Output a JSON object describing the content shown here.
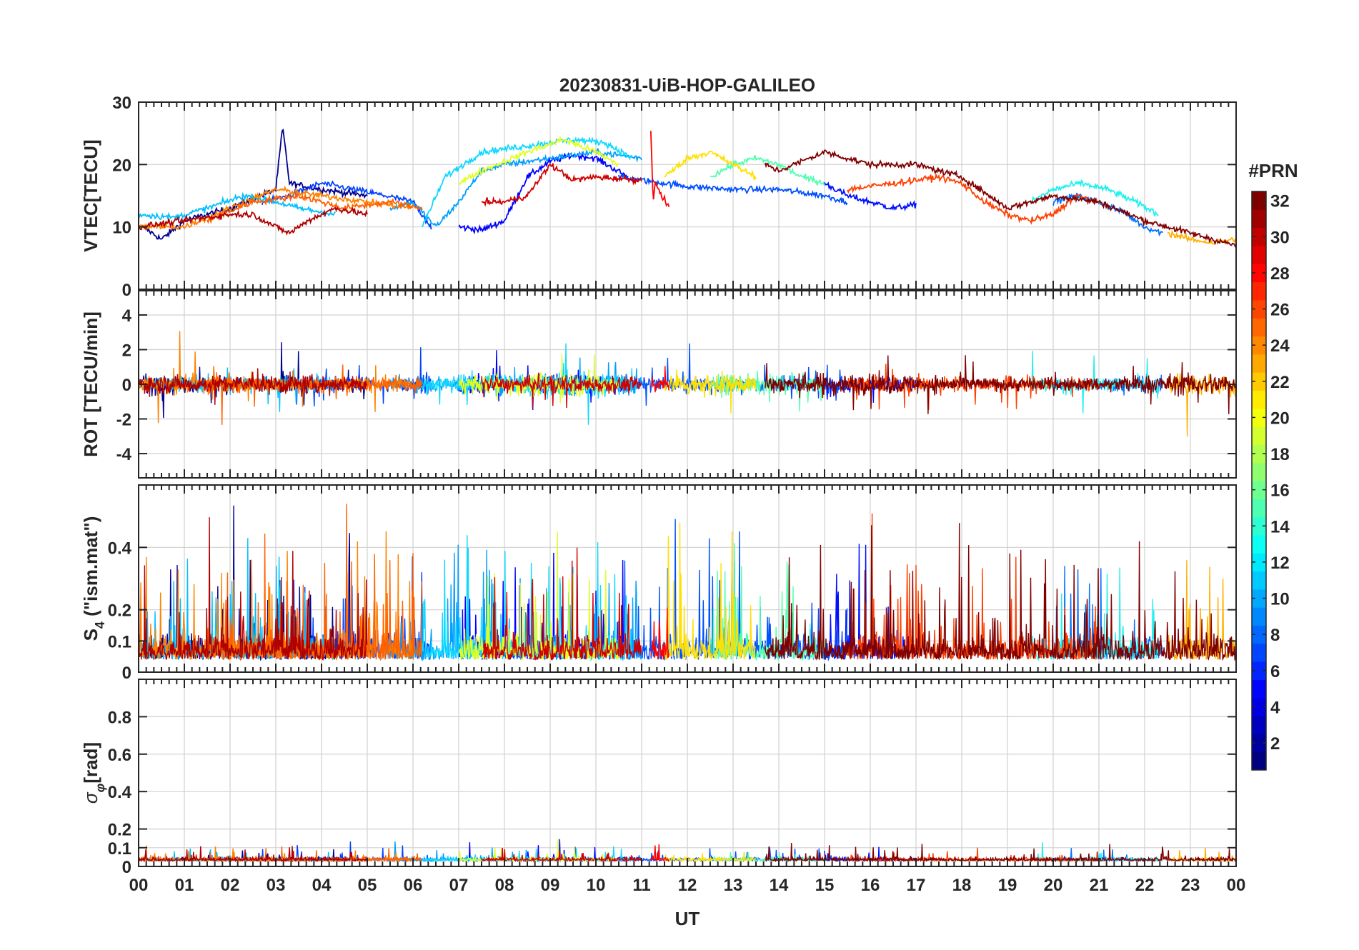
{
  "chart_data": {
    "type": "line",
    "title": "20230831-UiB-HOP-GALILEO",
    "xlabel": "UT",
    "x_tick_labels": [
      "00",
      "01",
      "02",
      "03",
      "04",
      "05",
      "06",
      "07",
      "08",
      "09",
      "10",
      "11",
      "12",
      "13",
      "14",
      "15",
      "16",
      "17",
      "18",
      "19",
      "20",
      "21",
      "22",
      "23",
      "00"
    ],
    "xlim": [
      0,
      24
    ],
    "grid": true,
    "panels": [
      {
        "id": "vtec",
        "ylabel": "VTEC[TECU]",
        "ylim": [
          0,
          30
        ],
        "yticks": [
          0,
          10,
          20,
          30
        ],
        "ytick_labels": [
          "0",
          "10",
          "20",
          "30"
        ]
      },
      {
        "id": "rot",
        "ylabel": "ROT [TECU/min]",
        "ylim": [
          -5.4,
          5.4
        ],
        "yticks": [
          -4,
          -2,
          0,
          2,
          4
        ],
        "ytick_labels": [
          "-4",
          "-2",
          "0",
          "2",
          "4"
        ]
      },
      {
        "id": "s4",
        "ylabel_main": "S",
        "ylabel_sub": "4",
        "ylabel_rest": " (\"ism.mat\")",
        "ylim": [
          0,
          0.6
        ],
        "yticks": [
          0,
          0.1,
          0.2,
          0.4
        ],
        "ytick_labels": [
          "0",
          "0.1",
          "0.2",
          "0.4"
        ]
      },
      {
        "id": "sigma",
        "ylabel_main": "σ",
        "ylabel_sub": "φ",
        "ylabel_rest": "[rad]",
        "ylim": [
          0,
          1
        ],
        "yticks": [
          0,
          0.1,
          0.2,
          0.4,
          0.6,
          0.8
        ],
        "ytick_labels": [
          "0",
          "0.1",
          "0.2",
          "0.4",
          "0.6",
          "0.8"
        ]
      }
    ],
    "colorbar": {
      "title": "#PRN",
      "range": [
        1,
        32
      ],
      "ticks": [
        2,
        4,
        6,
        8,
        10,
        12,
        14,
        16,
        18,
        20,
        22,
        24,
        26,
        28,
        30,
        32
      ],
      "tick_labels": [
        "2",
        "4",
        "6",
        "8",
        "10",
        "12",
        "14",
        "16",
        "18",
        "20",
        "22",
        "24",
        "26",
        "28",
        "30",
        "32"
      ],
      "colormap": "jet"
    },
    "series": [
      {
        "prn": 2,
        "color": "#00008f",
        "vtec": [
          [
            0.1,
            10
          ],
          [
            0.5,
            8
          ],
          [
            1,
            11
          ],
          [
            2,
            13
          ],
          [
            3,
            16
          ],
          [
            3.15,
            26
          ],
          [
            3.3,
            17
          ],
          [
            4,
            16
          ],
          [
            5,
            15
          ]
        ]
      },
      {
        "prn": 4,
        "color": "#0000ff",
        "vtec": [
          [
            7,
            10
          ],
          [
            7.5,
            9.5
          ],
          [
            8,
            11
          ],
          [
            8.5,
            18
          ],
          [
            9,
            20.5
          ],
          [
            9.5,
            21.5
          ],
          [
            10,
            21
          ],
          [
            10.7,
            18
          ]
        ]
      },
      {
        "prn": 5,
        "color": "#0010ff",
        "vtec": [
          [
            15,
            17
          ],
          [
            15.5,
            15
          ],
          [
            16,
            14
          ],
          [
            16.5,
            13
          ],
          [
            17,
            13.5
          ]
        ]
      },
      {
        "prn": 6,
        "color": "#0040ff",
        "vtec": [
          [
            2.7,
            14
          ],
          [
            3.3,
            15
          ],
          [
            4,
            17
          ],
          [
            4.7,
            16
          ],
          [
            5.4,
            15
          ],
          [
            6,
            14
          ],
          [
            6.4,
            10
          ]
        ]
      },
      {
        "prn": 7,
        "color": "#0050ff",
        "vtec": [
          [
            10.5,
            18
          ],
          [
            11,
            17.5
          ],
          [
            12,
            16.5
          ],
          [
            13,
            16
          ],
          [
            14,
            16
          ],
          [
            15,
            15
          ],
          [
            15.5,
            14
          ]
        ]
      },
      {
        "prn": 8,
        "color": "#0070ff",
        "vtec": [
          [
            20,
            14
          ],
          [
            20.5,
            15
          ],
          [
            21,
            14
          ],
          [
            21.5,
            12.5
          ],
          [
            22,
            10
          ],
          [
            22.4,
            9
          ]
        ]
      },
      {
        "prn": 10,
        "color": "#00a0ff",
        "vtec": [
          [
            5.5,
            13
          ],
          [
            6,
            14
          ],
          [
            6.5,
            10
          ],
          [
            7,
            14
          ],
          [
            7.5,
            19
          ],
          [
            8,
            20
          ],
          [
            9,
            21
          ],
          [
            10,
            22
          ],
          [
            11,
            21
          ]
        ]
      },
      {
        "prn": 11,
        "color": "#00c0ff",
        "vtec": [
          [
            0,
            12
          ],
          [
            0.8,
            11.5
          ],
          [
            1.5,
            13
          ],
          [
            2.3,
            15
          ],
          [
            3,
            14
          ],
          [
            3.5,
            13
          ],
          [
            4.3,
            12
          ]
        ]
      },
      {
        "prn": 12,
        "color": "#10d8ff",
        "vtec": [
          [
            6.2,
            10
          ],
          [
            6.7,
            18
          ],
          [
            7.5,
            22
          ],
          [
            8.5,
            23
          ],
          [
            9.5,
            24
          ],
          [
            10.2,
            23.5
          ],
          [
            10.8,
            21
          ]
        ]
      },
      {
        "prn": 13,
        "color": "#20f0ef",
        "vtec": [
          [
            19.5,
            14
          ],
          [
            20,
            16
          ],
          [
            20.6,
            17
          ],
          [
            21.2,
            16
          ],
          [
            21.8,
            14
          ],
          [
            22.3,
            12
          ]
        ]
      },
      {
        "prn": 15,
        "color": "#50ffaf",
        "vtec": [
          [
            12.5,
            18
          ],
          [
            13,
            20
          ],
          [
            13.5,
            21
          ],
          [
            14,
            20
          ],
          [
            14.5,
            18
          ],
          [
            15,
            17
          ]
        ]
      },
      {
        "prn": 19,
        "color": "#e0ff1f",
        "vtec": [
          [
            7,
            17
          ],
          [
            7.5,
            19
          ],
          [
            8.5,
            22
          ],
          [
            9.3,
            24
          ],
          [
            10,
            22
          ],
          [
            10.5,
            20
          ]
        ]
      },
      {
        "prn": 20,
        "color": "#ffe000",
        "vtec": [
          [
            11.5,
            18
          ],
          [
            12,
            21
          ],
          [
            12.5,
            22
          ],
          [
            13,
            20
          ],
          [
            13.5,
            18
          ]
        ]
      },
      {
        "prn": 22,
        "color": "#ffb000",
        "vtec": [
          [
            22.5,
            9
          ],
          [
            23,
            8
          ],
          [
            23.5,
            7.5
          ],
          [
            24,
            8
          ]
        ]
      },
      {
        "prn": 24,
        "color": "#ff8000",
        "vtec": [
          [
            0,
            10
          ],
          [
            1,
            10
          ],
          [
            2,
            13
          ],
          [
            3,
            16
          ],
          [
            4,
            15
          ],
          [
            5,
            14
          ],
          [
            6,
            13
          ]
        ]
      },
      {
        "prn": 25,
        "color": "#ff6000",
        "vtec": [
          [
            1.5,
            11
          ],
          [
            2.5,
            14
          ],
          [
            3.5,
            15
          ],
          [
            4.5,
            13
          ],
          [
            5.5,
            14
          ],
          [
            6.2,
            13
          ]
        ]
      },
      {
        "prn": 26,
        "color": "#ff4000",
        "vtec": [
          [
            15.5,
            16
          ],
          [
            16.5,
            17
          ],
          [
            17.5,
            18
          ],
          [
            18,
            17
          ],
          [
            18.5,
            14
          ],
          [
            19,
            12
          ],
          [
            19.5,
            11
          ],
          [
            20,
            12
          ],
          [
            20.5,
            15
          ],
          [
            21,
            14
          ]
        ]
      },
      {
        "prn": 28,
        "color": "#ff0000",
        "vtec": [
          [
            11.2,
            25
          ],
          [
            11.25,
            14
          ],
          [
            11.3,
            17
          ],
          [
            11.6,
            13
          ]
        ]
      },
      {
        "prn": 30,
        "color": "#d00000",
        "vtec": [
          [
            7.5,
            14
          ],
          [
            8,
            14
          ],
          [
            8.5,
            15
          ],
          [
            9,
            20
          ],
          [
            9.5,
            17.5
          ],
          [
            10,
            18
          ],
          [
            11,
            17.5
          ]
        ]
      },
      {
        "prn": 31,
        "color": "#b00000",
        "vtec": [
          [
            0,
            10
          ],
          [
            1,
            11
          ],
          [
            2,
            12
          ],
          [
            2.5,
            12
          ],
          [
            3,
            10
          ],
          [
            3.3,
            9
          ],
          [
            3.7,
            11
          ],
          [
            4.3,
            13
          ],
          [
            5,
            12
          ]
        ]
      },
      {
        "prn": 32,
        "color": "#800000",
        "vtec": [
          [
            13.7,
            20
          ],
          [
            14,
            19
          ],
          [
            15,
            22
          ],
          [
            15.5,
            21
          ],
          [
            16,
            20
          ],
          [
            17,
            20
          ],
          [
            18,
            18
          ],
          [
            19,
            13
          ],
          [
            20,
            15
          ],
          [
            21,
            14
          ],
          [
            22,
            11
          ],
          [
            23,
            9
          ],
          [
            24,
            7
          ]
        ]
      }
    ]
  }
}
